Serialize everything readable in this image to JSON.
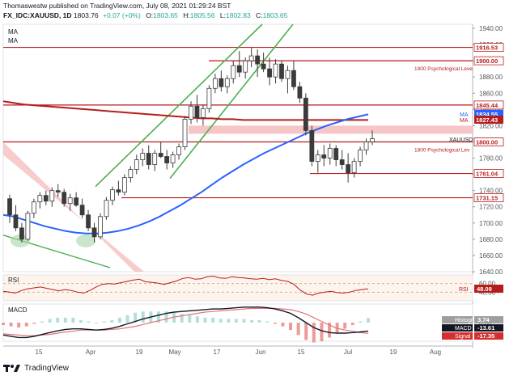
{
  "header": {
    "line1": "Thomaswestw published on TradingView.com, July 08, 2021 01:29:24 BST",
    "symbol": "FX_IDC:XAUUSD, 1D",
    "price": "1803.76",
    "change": "+0.07 (+0%)",
    "o_label": "O:",
    "o_val": "1803.65",
    "h_label": "H:",
    "h_val": "1805.56",
    "l_label": "L:",
    "l_val": "1802.83",
    "c_label": "C:",
    "c_val": "1803.65"
  },
  "footer": {
    "brand": "TradingView"
  },
  "colors": {
    "up": "#26a69a",
    "down": "#ef5350",
    "candle": "#3b3b3b",
    "ma_blue": "#2962ff",
    "ma_red": "#b71c1c",
    "hline": "#b71c1c",
    "channel": "#4caf50",
    "zone": "#f4b6b6",
    "rsi": "#b71c1c",
    "macd": "#131722",
    "signal": "#e57373"
  },
  "chart_data": [
    {
      "type": "line",
      "title": "",
      "legend": [
        "MA",
        "MA"
      ],
      "x_ticks": [
        "15",
        "Apr",
        "19",
        "May",
        "17",
        "Jun",
        "15",
        "Jul",
        "19",
        "Aug"
      ],
      "y_ticks": [
        1640,
        1660,
        1680,
        1700,
        1720,
        1740,
        1760,
        1780,
        1800,
        1820,
        1840,
        1860,
        1880,
        1900,
        1920,
        1940
      ],
      "ylim": [
        1640,
        1945
      ],
      "series": [
        {
          "values": [
            1710,
            1708,
            1704,
            1700,
            1696,
            1693,
            1690,
            1688,
            1687,
            1687,
            1688,
            1690,
            1693,
            1697,
            1702,
            1708,
            1715,
            1722,
            1730,
            1738,
            1747,
            1756,
            1764,
            1772,
            1779,
            1786,
            1792,
            1798,
            1804,
            1810,
            1815,
            1820,
            1824,
            1828,
            1831,
            1834
          ]
        },
        {
          "values": [
            1850,
            1848,
            1846,
            1845,
            1844,
            1843,
            1842,
            1841,
            1840,
            1839,
            1838,
            1837,
            1836,
            1835,
            1834,
            1833,
            1832,
            1831,
            1830,
            1829,
            1829,
            1828,
            1828,
            1827,
            1827,
            1827,
            1827,
            1827,
            1827,
            1827,
            1827,
            1827,
            1827,
            1827,
            1827,
            1827
          ]
        }
      ],
      "horizontal_levels": [
        {
          "value": 1916.53,
          "label": "1916.53"
        },
        {
          "value": 1900.0,
          "label": "1900.00",
          "note": "1900 Psychological Leve"
        },
        {
          "value": 1845.44,
          "label": "1845.44"
        },
        {
          "value": 1834.55,
          "label": "1834.55",
          "series": "MA"
        },
        {
          "value": 1827.43,
          "label": "1827.43",
          "series": "MA"
        },
        {
          "value": 1803.65,
          "label": "1803.65",
          "series": "XAUUSD"
        },
        {
          "value": 1800.0,
          "label": "1800.00",
          "note": "1800 Psychological Lev"
        },
        {
          "value": 1761.04,
          "label": "1761.04"
        },
        {
          "value": 1731.15,
          "label": "1731.15"
        }
      ],
      "candles": [
        [
          1730,
          1735,
          1700,
          1710
        ],
        [
          1710,
          1722,
          1690,
          1694
        ],
        [
          1694,
          1700,
          1676,
          1680
        ],
        [
          1680,
          1715,
          1678,
          1712
        ],
        [
          1712,
          1730,
          1706,
          1726
        ],
        [
          1726,
          1738,
          1718,
          1734
        ],
        [
          1734,
          1740,
          1722,
          1727
        ],
        [
          1727,
          1744,
          1720,
          1740
        ],
        [
          1740,
          1748,
          1732,
          1738
        ],
        [
          1738,
          1742,
          1720,
          1724
        ],
        [
          1724,
          1736,
          1715,
          1731
        ],
        [
          1731,
          1738,
          1720,
          1722
        ],
        [
          1722,
          1730,
          1706,
          1710
        ],
        [
          1710,
          1716,
          1690,
          1694
        ],
        [
          1694,
          1700,
          1676,
          1683
        ],
        [
          1683,
          1712,
          1680,
          1708
        ],
        [
          1708,
          1732,
          1704,
          1728
        ],
        [
          1728,
          1745,
          1722,
          1741
        ],
        [
          1741,
          1752,
          1734,
          1738
        ],
        [
          1738,
          1760,
          1734,
          1756
        ],
        [
          1756,
          1770,
          1750,
          1766
        ],
        [
          1766,
          1784,
          1760,
          1778
        ],
        [
          1778,
          1792,
          1770,
          1786
        ],
        [
          1786,
          1796,
          1766,
          1772
        ],
        [
          1772,
          1790,
          1764,
          1786
        ],
        [
          1786,
          1800,
          1780,
          1782
        ],
        [
          1782,
          1790,
          1766,
          1774
        ],
        [
          1774,
          1788,
          1768,
          1784
        ],
        [
          1784,
          1798,
          1778,
          1794
        ],
        [
          1794,
          1832,
          1790,
          1828
        ],
        [
          1828,
          1850,
          1822,
          1844
        ],
        [
          1844,
          1858,
          1824,
          1830
        ],
        [
          1830,
          1846,
          1820,
          1841
        ],
        [
          1841,
          1870,
          1836,
          1866
        ],
        [
          1866,
          1884,
          1860,
          1878
        ],
        [
          1878,
          1888,
          1862,
          1868
        ],
        [
          1868,
          1882,
          1860,
          1878
        ],
        [
          1878,
          1900,
          1872,
          1894
        ],
        [
          1894,
          1912,
          1880,
          1886
        ],
        [
          1886,
          1904,
          1878,
          1900
        ],
        [
          1900,
          1916,
          1892,
          1906
        ],
        [
          1906,
          1914,
          1880,
          1896
        ],
        [
          1896,
          1910,
          1886,
          1890
        ],
        [
          1890,
          1904,
          1870,
          1880
        ],
        [
          1880,
          1902,
          1872,
          1896
        ],
        [
          1896,
          1900,
          1874,
          1878
        ],
        [
          1878,
          1894,
          1860,
          1888
        ],
        [
          1888,
          1900,
          1864,
          1868
        ],
        [
          1868,
          1874,
          1848,
          1854
        ],
        [
          1854,
          1860,
          1808,
          1814
        ],
        [
          1814,
          1820,
          1770,
          1776
        ],
        [
          1776,
          1790,
          1762,
          1784
        ],
        [
          1784,
          1796,
          1770,
          1780
        ],
        [
          1780,
          1798,
          1772,
          1792
        ],
        [
          1792,
          1796,
          1770,
          1778
        ],
        [
          1778,
          1790,
          1766,
          1772
        ],
        [
          1772,
          1786,
          1750,
          1762
        ],
        [
          1762,
          1780,
          1756,
          1776
        ],
        [
          1776,
          1794,
          1770,
          1790
        ],
        [
          1790,
          1804,
          1784,
          1800
        ],
        [
          1800,
          1814,
          1796,
          1804
        ]
      ]
    },
    {
      "type": "line",
      "title": "RSI",
      "y_ticks": [
        60,
        40
      ],
      "ylim": [
        20,
        80
      ],
      "series": [
        {
          "name": "RSI",
          "values": [
            42,
            40,
            38,
            44,
            48,
            50,
            52,
            49,
            46,
            43,
            46,
            44,
            40,
            38,
            44,
            52,
            58,
            60,
            59,
            62,
            65,
            68,
            70,
            64,
            63,
            61,
            58,
            62,
            66,
            72,
            74,
            70,
            71,
            76,
            77,
            73,
            72,
            76,
            74,
            73,
            71,
            70,
            72,
            69,
            71,
            67,
            65,
            58,
            45,
            36,
            33,
            38,
            40,
            42,
            39,
            38,
            40,
            44,
            46,
            48
          ]
        }
      ],
      "last_label": "48.09"
    },
    {
      "type": "bar",
      "title": "MACD",
      "y_ticks": [
        0
      ],
      "ylim": [
        -30,
        30
      ],
      "series": [
        {
          "name": "MACD",
          "values": [
            -20,
            -22,
            -24,
            -24,
            -22,
            -19,
            -16,
            -13,
            -11,
            -10,
            -10,
            -11,
            -12,
            -11,
            -9,
            -6,
            -2,
            2,
            6,
            9,
            12,
            15,
            17,
            18,
            19,
            20,
            21,
            22,
            22,
            23,
            24,
            25,
            25,
            25,
            24,
            22,
            19,
            15,
            8,
            0,
            -8,
            -13,
            -16,
            -17,
            -17,
            -16,
            -15,
            -13.61
          ]
        },
        {
          "name": "Signal",
          "values": [
            -18,
            -19,
            -20,
            -21,
            -21,
            -20,
            -19,
            -17,
            -15,
            -14,
            -12,
            -12,
            -12,
            -12,
            -11,
            -10,
            -8,
            -6,
            -3,
            0,
            3,
            6,
            9,
            11,
            13,
            15,
            17,
            18,
            19,
            20,
            21,
            22,
            23,
            23,
            23,
            23,
            22,
            21,
            18,
            14,
            8,
            2,
            -4,
            -9,
            -12,
            -14,
            -16,
            -17.35
          ]
        }
      ],
      "histogram_last": "3.74",
      "labels": {
        "histogram": "Histogram",
        "macd": "MACD",
        "signal": "Signal",
        "macd_val": "-13.61",
        "signal_val": "-17.35"
      }
    }
  ]
}
